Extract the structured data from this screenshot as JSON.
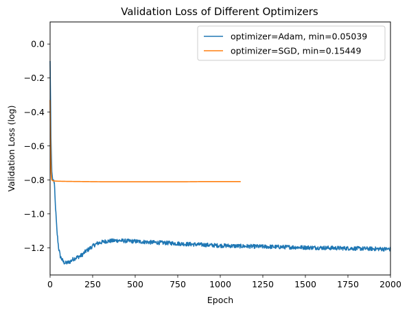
{
  "chart_data": {
    "type": "line",
    "title": "Validation Loss of Different Optimizers",
    "xlabel": "Epoch",
    "ylabel": "Validation Loss (log)",
    "xlim": [
      0,
      2000
    ],
    "ylim": [
      -1.36,
      0.13
    ],
    "xticks": [
      0,
      250,
      500,
      750,
      1000,
      1250,
      1500,
      1750,
      2000
    ],
    "yticks": [
      0.0,
      -0.2,
      -0.4,
      -0.6,
      -0.8,
      -1.0,
      -1.2
    ],
    "ytick_labels": [
      "0.0",
      "−0.2",
      "−0.4",
      "−0.6",
      "−0.8",
      "−1.0",
      "−1.2"
    ],
    "grid": false,
    "legend_position": "top-right",
    "series": [
      {
        "name": "optimizer=Adam, min=0.05039",
        "color": "#1f77b4",
        "noise": 0.012,
        "x": [
          0,
          5,
          10,
          15,
          20,
          25,
          30,
          40,
          50,
          60,
          70,
          80,
          90,
          100,
          110,
          120,
          130,
          140,
          150,
          160,
          175,
          190,
          200,
          210,
          225,
          250,
          275,
          300,
          325,
          350,
          375,
          400,
          450,
          500,
          550,
          600,
          650,
          700,
          750,
          800,
          850,
          900,
          950,
          1000,
          1050,
          1100,
          1150,
          1200,
          1250,
          1300,
          1350,
          1400,
          1450,
          1500,
          1550,
          1600,
          1650,
          1700,
          1750,
          1800,
          1850,
          1900,
          1950,
          2000
        ],
        "y": [
          -0.1,
          -0.55,
          -0.75,
          -0.8,
          -0.8,
          -0.82,
          -0.93,
          -1.1,
          -1.2,
          -1.25,
          -1.27,
          -1.285,
          -1.29,
          -1.288,
          -1.285,
          -1.28,
          -1.27,
          -1.265,
          -1.26,
          -1.255,
          -1.25,
          -1.24,
          -1.23,
          -1.22,
          -1.21,
          -1.19,
          -1.175,
          -1.168,
          -1.162,
          -1.16,
          -1.158,
          -1.157,
          -1.16,
          -1.162,
          -1.165,
          -1.168,
          -1.17,
          -1.172,
          -1.175,
          -1.178,
          -1.18,
          -1.182,
          -1.185,
          -1.187,
          -1.188,
          -1.19,
          -1.191,
          -1.192,
          -1.193,
          -1.194,
          -1.195,
          -1.196,
          -1.197,
          -1.198,
          -1.199,
          -1.2,
          -1.201,
          -1.202,
          -1.203,
          -1.204,
          -1.205,
          -1.206,
          -1.207,
          -1.208
        ]
      },
      {
        "name": "optimizer=SGD, min=0.15449",
        "color": "#ff7f0e",
        "noise": 0.0,
        "x": [
          0,
          2,
          4,
          6,
          8,
          10,
          15,
          20,
          30,
          50,
          100,
          200,
          300,
          400,
          500,
          600,
          700,
          800,
          900,
          1000,
          1050,
          1100,
          1120
        ],
        "y": [
          -0.33,
          -0.55,
          -0.68,
          -0.76,
          -0.79,
          -0.8,
          -0.805,
          -0.806,
          -0.807,
          -0.808,
          -0.809,
          -0.81,
          -0.811,
          -0.811,
          -0.811,
          -0.811,
          -0.811,
          -0.811,
          -0.81,
          -0.81,
          -0.81,
          -0.81,
          -0.81
        ]
      }
    ]
  }
}
